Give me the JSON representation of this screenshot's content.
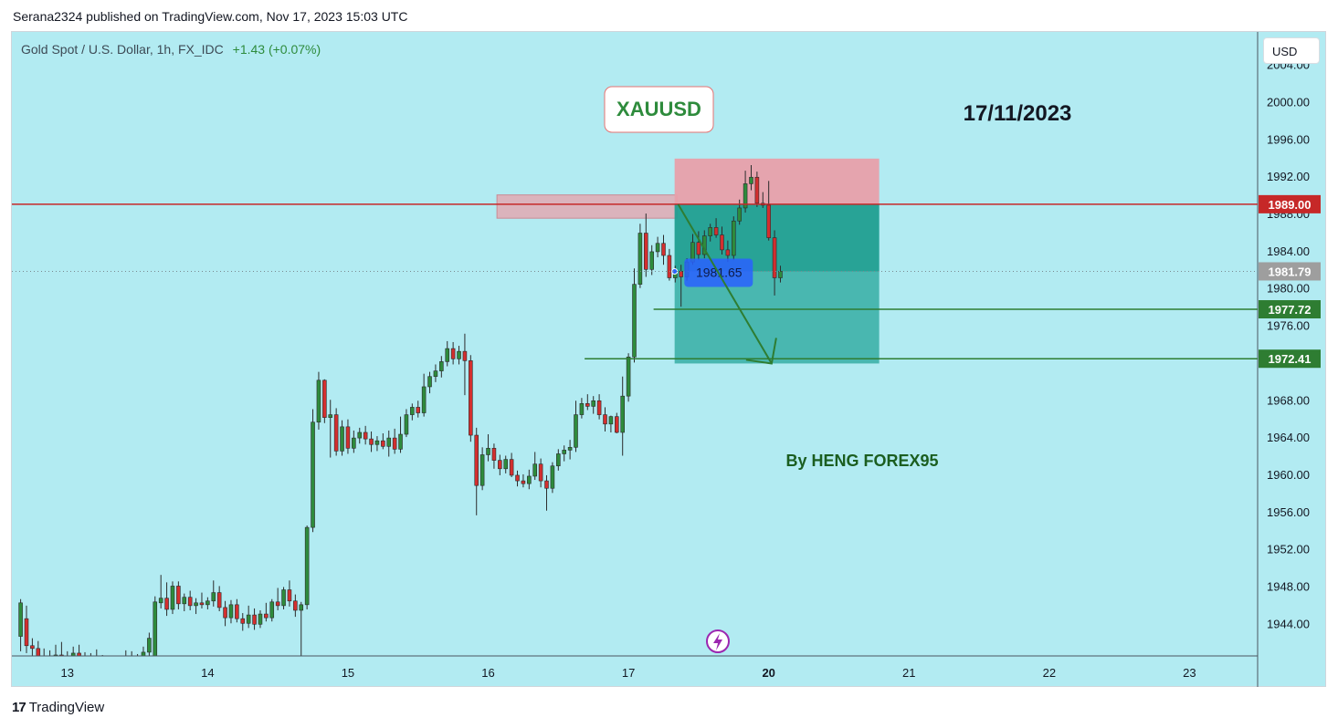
{
  "header": {
    "published_line": "Serana2324 published on TradingView.com, Nov 17, 2023 15:03 UTC"
  },
  "symbol": {
    "name": "Gold Spot / U.S. Dollar, 1h, FX_IDC",
    "change": "+1.43 (+0.07%)"
  },
  "currency_button": "USD",
  "footer": {
    "brand": "TradingView",
    "logo_mark": "17"
  },
  "icons": {
    "lightning": "lightning-icon"
  },
  "colors": {
    "background": "#b2ebf2",
    "up_candle": "#2e8b3c",
    "down_candle": "#d32f2f",
    "resistance_line": "#c62828",
    "target_line": "#2e7d32",
    "stop_zone": "#e8a0aa",
    "profit_zone": "#26a69a"
  },
  "chart_data": {
    "type": "candlestick",
    "title": "XAUUSD",
    "date_label": "17/11/2023",
    "annotation": "By HENG FOREX95",
    "y_axis": {
      "ticks": [
        "2004.00",
        "2000.00",
        "1996.00",
        "1992.00",
        "1988.00",
        "1984.00",
        "1980.00",
        "1976.00",
        "1968.00",
        "1964.00",
        "1960.00",
        "1956.00",
        "1952.00",
        "1948.00",
        "1944.00"
      ],
      "range": [
        1940.5,
        2007.5
      ]
    },
    "x_axis": {
      "ticks": [
        {
          "label": "13",
          "t": 0
        },
        {
          "label": "14",
          "t": 24
        },
        {
          "label": "15",
          "t": 48
        },
        {
          "label": "16",
          "t": 72
        },
        {
          "label": "17",
          "t": 96
        },
        {
          "label": "20",
          "t": 120,
          "bold": true
        },
        {
          "label": "21",
          "t": 144
        },
        {
          "label": "22",
          "t": 168
        },
        {
          "label": "23",
          "t": 192
        }
      ],
      "range": [
        -9.5,
        203.5
      ]
    },
    "price_labels": [
      {
        "value": 1989.0,
        "text": "1989.00",
        "color": "#c62828"
      },
      {
        "value": 1981.79,
        "text": "1981.79",
        "color": "#9e9e9e"
      },
      {
        "value": 1977.72,
        "text": "1977.72",
        "color": "#2e7d32"
      },
      {
        "value": 1972.41,
        "text": "1972.41",
        "color": "#2e7d32"
      }
    ],
    "horizontal_lines": [
      {
        "value": 1989.0,
        "from_t": -9.5,
        "color": "#c62828",
        "style": "solid"
      },
      {
        "value": 1981.79,
        "from_t": -9.5,
        "color": "#7a8a90",
        "style": "dotted"
      },
      {
        "value": 1977.72,
        "from_t": 100.3,
        "color": "#2e7d32",
        "style": "solid"
      },
      {
        "value": 1972.41,
        "from_t": 88.5,
        "color": "#2e7d32",
        "style": "solid"
      }
    ],
    "supply_zone": {
      "t_start": 73.5,
      "t_end": 104.3,
      "top": 1990.0,
      "bottom": 1987.5
    },
    "short_position": {
      "t_start": 103.9,
      "t_end": 138.9,
      "entry": 1989.0,
      "stop": 1993.9,
      "target": 1971.9,
      "current": 1981.79,
      "label": "1981.65"
    },
    "projection_arrow": {
      "from_t": 104.5,
      "from_v": 1989.0,
      "to_t": 120.5,
      "to_v": 1971.9
    },
    "candles": [
      {
        "o": 1942.6,
        "h": 1946.6,
        "l": 1941.0,
        "c": 1946.2
      },
      {
        "o": 1944.5,
        "h": 1945.9,
        "l": 1940.8,
        "c": 1941.6
      },
      {
        "o": 1941.6,
        "h": 1942.4,
        "l": 1940.5,
        "c": 1941.3
      },
      {
        "o": 1941.3,
        "h": 1942.1,
        "l": 1940.0,
        "c": 1940.5
      },
      {
        "o": 1940.5,
        "h": 1941.3,
        "l": 1939.4,
        "c": 1940.2
      },
      {
        "o": 1940.2,
        "h": 1941.1,
        "l": 1939.1,
        "c": 1939.8
      },
      {
        "o": 1939.8,
        "h": 1941.7,
        "l": 1939.5,
        "c": 1940.6
      },
      {
        "o": 1940.6,
        "h": 1942.0,
        "l": 1939.9,
        "c": 1940.2
      },
      {
        "o": 1940.2,
        "h": 1941.0,
        "l": 1939.0,
        "c": 1939.9
      },
      {
        "o": 1939.9,
        "h": 1941.5,
        "l": 1939.6,
        "c": 1940.8
      },
      {
        "o": 1940.8,
        "h": 1941.7,
        "l": 1939.7,
        "c": 1940.1
      },
      {
        "o": 1940.1,
        "h": 1940.9,
        "l": 1939.2,
        "c": 1939.6
      },
      {
        "o": 1939.6,
        "h": 1940.8,
        "l": 1939.3,
        "c": 1940.4
      },
      {
        "o": 1940.4,
        "h": 1941.2,
        "l": 1939.8,
        "c": 1940.0
      },
      {
        "o": 1940.0,
        "h": 1940.6,
        "l": 1938.8,
        "c": 1939.3
      },
      {
        "o": 1939.3,
        "h": 1940.1,
        "l": 1938.4,
        "c": 1939.7
      },
      {
        "o": 1939.7,
        "h": 1940.5,
        "l": 1938.9,
        "c": 1939.4
      },
      {
        "o": 1939.4,
        "h": 1940.4,
        "l": 1938.6,
        "c": 1939.9
      },
      {
        "o": 1939.9,
        "h": 1941.1,
        "l": 1939.5,
        "c": 1940.3
      },
      {
        "o": 1940.3,
        "h": 1941.0,
        "l": 1939.1,
        "c": 1939.6
      },
      {
        "o": 1939.6,
        "h": 1940.7,
        "l": 1938.9,
        "c": 1940.2
      },
      {
        "o": 1940.2,
        "h": 1941.5,
        "l": 1939.9,
        "c": 1940.9
      },
      {
        "o": 1940.9,
        "h": 1943.0,
        "l": 1940.3,
        "c": 1942.4
      },
      {
        "o": 1939.0,
        "h": 1946.9,
        "l": 1938.7,
        "c": 1946.3
      },
      {
        "o": 1946.2,
        "h": 1949.2,
        "l": 1945.6,
        "c": 1946.7
      },
      {
        "o": 1946.7,
        "h": 1948.4,
        "l": 1944.8,
        "c": 1945.5
      },
      {
        "o": 1945.5,
        "h": 1948.5,
        "l": 1945.0,
        "c": 1948.0
      },
      {
        "o": 1948.0,
        "h": 1948.5,
        "l": 1945.5,
        "c": 1946.1
      },
      {
        "o": 1946.1,
        "h": 1947.2,
        "l": 1945.3,
        "c": 1946.8
      },
      {
        "o": 1946.8,
        "h": 1947.5,
        "l": 1945.4,
        "c": 1945.9
      },
      {
        "o": 1945.9,
        "h": 1946.7,
        "l": 1945.0,
        "c": 1946.2
      },
      {
        "o": 1946.2,
        "h": 1947.3,
        "l": 1945.6,
        "c": 1946.0
      },
      {
        "o": 1946.0,
        "h": 1946.8,
        "l": 1945.5,
        "c": 1946.4
      },
      {
        "o": 1946.4,
        "h": 1948.6,
        "l": 1945.8,
        "c": 1947.3
      },
      {
        "o": 1947.3,
        "h": 1948.0,
        "l": 1945.3,
        "c": 1945.7
      },
      {
        "o": 1945.7,
        "h": 1946.4,
        "l": 1943.7,
        "c": 1944.6
      },
      {
        "o": 1944.6,
        "h": 1946.5,
        "l": 1944.0,
        "c": 1946.0
      },
      {
        "o": 1946.0,
        "h": 1946.6,
        "l": 1944.1,
        "c": 1944.5
      },
      {
        "o": 1944.5,
        "h": 1945.1,
        "l": 1943.2,
        "c": 1944.0
      },
      {
        "o": 1944.0,
        "h": 1945.9,
        "l": 1943.5,
        "c": 1944.9
      },
      {
        "o": 1944.9,
        "h": 1945.6,
        "l": 1943.3,
        "c": 1943.9
      },
      {
        "o": 1943.9,
        "h": 1945.4,
        "l": 1943.5,
        "c": 1945.0
      },
      {
        "o": 1945.0,
        "h": 1946.2,
        "l": 1944.2,
        "c": 1944.6
      },
      {
        "o": 1944.6,
        "h": 1946.6,
        "l": 1944.2,
        "c": 1946.3
      },
      {
        "o": 1946.3,
        "h": 1947.8,
        "l": 1945.4,
        "c": 1945.9
      },
      {
        "o": 1945.9,
        "h": 1947.9,
        "l": 1945.5,
        "c": 1947.6
      },
      {
        "o": 1947.6,
        "h": 1948.6,
        "l": 1945.8,
        "c": 1946.4
      },
      {
        "o": 1946.4,
        "h": 1947.1,
        "l": 1944.7,
        "c": 1945.4
      },
      {
        "o": 1945.4,
        "h": 1946.3,
        "l": 1938.0,
        "c": 1946.0
      },
      {
        "o": 1946.0,
        "h": 1954.5,
        "l": 1945.5,
        "c": 1954.3
      },
      {
        "o": 1954.3,
        "h": 1967.0,
        "l": 1953.8,
        "c": 1965.6
      },
      {
        "o": 1965.6,
        "h": 1971.0,
        "l": 1964.8,
        "c": 1970.1
      },
      {
        "o": 1970.1,
        "h": 1970.2,
        "l": 1965.5,
        "c": 1966.1
      },
      {
        "o": 1966.1,
        "h": 1968.0,
        "l": 1961.8,
        "c": 1966.4
      },
      {
        "o": 1966.4,
        "h": 1967.1,
        "l": 1962.0,
        "c": 1962.5
      },
      {
        "o": 1962.5,
        "h": 1965.8,
        "l": 1962.0,
        "c": 1965.1
      },
      {
        "o": 1965.1,
        "h": 1965.9,
        "l": 1962.2,
        "c": 1962.8
      },
      {
        "o": 1962.8,
        "h": 1964.7,
        "l": 1962.3,
        "c": 1963.9
      },
      {
        "o": 1963.9,
        "h": 1965.0,
        "l": 1963.3,
        "c": 1964.5
      },
      {
        "o": 1964.5,
        "h": 1965.2,
        "l": 1963.2,
        "c": 1963.8
      },
      {
        "o": 1963.8,
        "h": 1964.6,
        "l": 1962.4,
        "c": 1963.2
      },
      {
        "o": 1963.2,
        "h": 1964.1,
        "l": 1962.5,
        "c": 1963.6
      },
      {
        "o": 1963.6,
        "h": 1964.4,
        "l": 1962.7,
        "c": 1963.0
      },
      {
        "o": 1963.0,
        "h": 1964.7,
        "l": 1961.9,
        "c": 1963.9
      },
      {
        "o": 1963.9,
        "h": 1964.9,
        "l": 1962.2,
        "c": 1962.7
      },
      {
        "o": 1962.7,
        "h": 1966.2,
        "l": 1962.3,
        "c": 1964.3
      },
      {
        "o": 1964.3,
        "h": 1967.0,
        "l": 1964.0,
        "c": 1966.4
      },
      {
        "o": 1966.4,
        "h": 1967.6,
        "l": 1965.8,
        "c": 1967.2
      },
      {
        "o": 1967.2,
        "h": 1967.9,
        "l": 1966.1,
        "c": 1966.6
      },
      {
        "o": 1966.6,
        "h": 1970.8,
        "l": 1966.2,
        "c": 1969.4
      },
      {
        "o": 1969.4,
        "h": 1971.0,
        "l": 1968.7,
        "c": 1970.5
      },
      {
        "o": 1970.5,
        "h": 1971.8,
        "l": 1969.9,
        "c": 1971.1
      },
      {
        "o": 1971.1,
        "h": 1972.7,
        "l": 1970.4,
        "c": 1972.1
      },
      {
        "o": 1972.1,
        "h": 1974.3,
        "l": 1971.6,
        "c": 1973.5
      },
      {
        "o": 1973.5,
        "h": 1974.2,
        "l": 1971.8,
        "c": 1972.4
      },
      {
        "o": 1972.4,
        "h": 1973.8,
        "l": 1971.8,
        "c": 1973.2
      },
      {
        "o": 1973.2,
        "h": 1975.1,
        "l": 1968.5,
        "c": 1972.2
      },
      {
        "o": 1972.2,
        "h": 1972.8,
        "l": 1963.5,
        "c": 1964.2
      },
      {
        "o": 1964.2,
        "h": 1965.0,
        "l": 1955.6,
        "c": 1958.8
      },
      {
        "o": 1958.8,
        "h": 1962.9,
        "l": 1958.3,
        "c": 1962.1
      },
      {
        "o": 1962.1,
        "h": 1964.3,
        "l": 1961.4,
        "c": 1962.8
      },
      {
        "o": 1962.8,
        "h": 1963.3,
        "l": 1960.6,
        "c": 1961.5
      },
      {
        "o": 1961.5,
        "h": 1962.1,
        "l": 1959.9,
        "c": 1960.6
      },
      {
        "o": 1960.6,
        "h": 1962.0,
        "l": 1960.1,
        "c": 1961.6
      },
      {
        "o": 1961.6,
        "h": 1962.3,
        "l": 1959.7,
        "c": 1959.9
      },
      {
        "o": 1959.9,
        "h": 1960.4,
        "l": 1958.7,
        "c": 1959.3
      },
      {
        "o": 1959.3,
        "h": 1960.0,
        "l": 1958.6,
        "c": 1959.0
      },
      {
        "o": 1959.0,
        "h": 1960.5,
        "l": 1958.4,
        "c": 1959.8
      },
      {
        "o": 1959.8,
        "h": 1962.4,
        "l": 1959.4,
        "c": 1961.1
      },
      {
        "o": 1961.1,
        "h": 1961.7,
        "l": 1958.6,
        "c": 1959.3
      },
      {
        "o": 1959.3,
        "h": 1959.9,
        "l": 1956.1,
        "c": 1958.5
      },
      {
        "o": 1958.5,
        "h": 1961.3,
        "l": 1958.0,
        "c": 1960.9
      },
      {
        "o": 1960.9,
        "h": 1962.7,
        "l": 1960.4,
        "c": 1962.2
      },
      {
        "o": 1962.2,
        "h": 1963.1,
        "l": 1961.4,
        "c": 1962.6
      },
      {
        "o": 1962.6,
        "h": 1963.7,
        "l": 1961.6,
        "c": 1962.9
      },
      {
        "o": 1962.9,
        "h": 1967.9,
        "l": 1962.4,
        "c": 1966.4
      },
      {
        "o": 1966.4,
        "h": 1968.2,
        "l": 1966.0,
        "c": 1967.6
      },
      {
        "o": 1967.6,
        "h": 1968.6,
        "l": 1966.9,
        "c": 1967.3
      },
      {
        "o": 1967.3,
        "h": 1968.4,
        "l": 1966.5,
        "c": 1967.9
      },
      {
        "o": 1967.9,
        "h": 1968.6,
        "l": 1965.9,
        "c": 1966.4
      },
      {
        "o": 1966.4,
        "h": 1967.2,
        "l": 1964.6,
        "c": 1965.4
      },
      {
        "o": 1965.4,
        "h": 1966.3,
        "l": 1964.5,
        "c": 1966.2
      },
      {
        "o": 1966.2,
        "h": 1966.6,
        "l": 1964.4,
        "c": 1964.5
      },
      {
        "o": 1964.5,
        "h": 1970.5,
        "l": 1962.0,
        "c": 1968.4
      },
      {
        "o": 1968.4,
        "h": 1973.0,
        "l": 1967.8,
        "c": 1972.6
      },
      {
        "o": 1972.6,
        "h": 1982.1,
        "l": 1972.0,
        "c": 1980.4
      },
      {
        "o": 1980.4,
        "h": 1986.9,
        "l": 1980.0,
        "c": 1985.9
      },
      {
        "o": 1985.9,
        "h": 1988.0,
        "l": 1981.2,
        "c": 1982.0
      },
      {
        "o": 1982.0,
        "h": 1984.6,
        "l": 1981.4,
        "c": 1983.9
      },
      {
        "o": 1983.9,
        "h": 1985.5,
        "l": 1983.3,
        "c": 1984.8
      },
      {
        "o": 1984.8,
        "h": 1985.7,
        "l": 1982.5,
        "c": 1983.5
      },
      {
        "o": 1983.5,
        "h": 1984.2,
        "l": 1980.8,
        "c": 1981.1
      },
      {
        "o": 1981.1,
        "h": 1982.4,
        "l": 1980.6,
        "c": 1981.8
      },
      {
        "o": 1981.8,
        "h": 1982.5,
        "l": 1978.0,
        "c": 1981.2
      },
      {
        "o": 1981.2,
        "h": 1983.2,
        "l": 1980.8,
        "c": 1982.8
      },
      {
        "o": 1982.8,
        "h": 1985.8,
        "l": 1982.5,
        "c": 1984.9
      },
      {
        "o": 1984.9,
        "h": 1986.1,
        "l": 1983.0,
        "c": 1983.6
      },
      {
        "o": 1983.6,
        "h": 1986.2,
        "l": 1983.2,
        "c": 1985.6
      },
      {
        "o": 1985.6,
        "h": 1986.9,
        "l": 1985.0,
        "c": 1986.5
      },
      {
        "o": 1986.5,
        "h": 1987.5,
        "l": 1985.4,
        "c": 1985.7
      },
      {
        "o": 1985.7,
        "h": 1986.6,
        "l": 1983.6,
        "c": 1984.1
      },
      {
        "o": 1984.1,
        "h": 1985.1,
        "l": 1982.8,
        "c": 1983.5
      },
      {
        "o": 1983.5,
        "h": 1987.7,
        "l": 1983.0,
        "c": 1987.2
      },
      {
        "o": 1987.2,
        "h": 1989.5,
        "l": 1986.8,
        "c": 1988.6
      },
      {
        "o": 1988.6,
        "h": 1992.6,
        "l": 1988.1,
        "c": 1991.2
      },
      {
        "o": 1991.2,
        "h": 1993.2,
        "l": 1990.5,
        "c": 1991.9
      },
      {
        "o": 1991.9,
        "h": 1992.5,
        "l": 1988.7,
        "c": 1989.1
      },
      {
        "o": 1989.1,
        "h": 1990.3,
        "l": 1988.6,
        "c": 1988.9
      },
      {
        "o": 1988.9,
        "h": 1991.5,
        "l": 1985.1,
        "c": 1985.4
      },
      {
        "o": 1985.4,
        "h": 1986.2,
        "l": 1979.2,
        "c": 1981.1
      },
      {
        "o": 1981.1,
        "h": 1982.4,
        "l": 1980.6,
        "c": 1981.8
      }
    ]
  }
}
